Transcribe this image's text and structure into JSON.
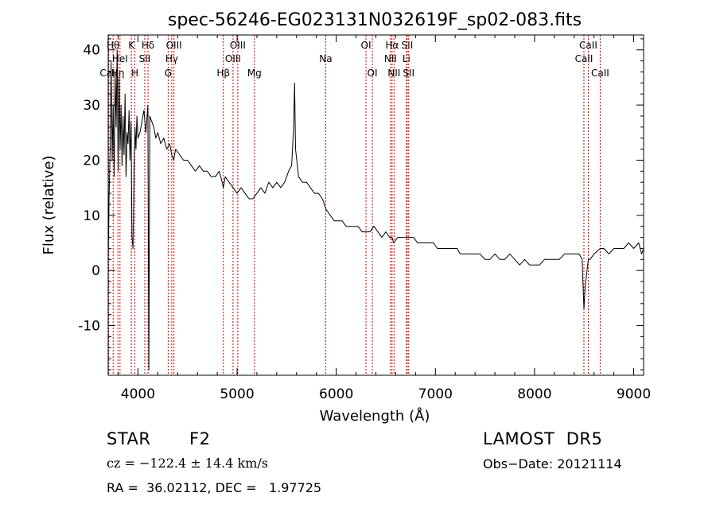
{
  "chart_data": {
    "type": "line",
    "title": "spec-56246-EG023131N032619F_sp02-083.fits",
    "xlabel": "Wavelength (Å)",
    "ylabel": "Flux (relative)",
    "xlim": [
      3700,
      9100
    ],
    "ylim": [
      -19,
      42.7
    ],
    "xticks": [
      4000,
      5000,
      6000,
      7000,
      8000,
      9000
    ],
    "yticks": [
      -10,
      0,
      10,
      20,
      30,
      40
    ],
    "grid": false,
    "legend": "none",
    "colors": {
      "spectrum": "#000000",
      "line_markers": "#cc0000",
      "axes": "#000000"
    },
    "line_markers": [
      {
        "label": "CaII",
        "x": 3706,
        "row": 2
      },
      {
        "label": "Hθ",
        "x": 3750,
        "row": 0
      },
      {
        "label": "Hη",
        "x": 3798,
        "row": 2
      },
      {
        "label": "HeI",
        "x": 3819,
        "row": 1
      },
      {
        "label": "K",
        "x": 3934,
        "row": 0
      },
      {
        "label": "H",
        "x": 3969,
        "row": 2
      },
      {
        "label": "SII",
        "x": 4069,
        "row": 1
      },
      {
        "label": "Hδ",
        "x": 4102,
        "row": 0
      },
      {
        "label": "G",
        "x": 4305,
        "row": 2
      },
      {
        "label": "Hγ",
        "x": 4341,
        "row": 1
      },
      {
        "label": "OIII",
        "x": 4363,
        "row": 0
      },
      {
        "label": "Hβ",
        "x": 4861,
        "row": 2
      },
      {
        "label": "OIII",
        "x": 4959,
        "row": 1
      },
      {
        "label": "OIII",
        "x": 5007,
        "row": 0
      },
      {
        "label": "Mg",
        "x": 5175,
        "row": 2
      },
      {
        "label": "Na",
        "x": 5894,
        "row": 1
      },
      {
        "label": "OI",
        "x": 6300,
        "row": 0
      },
      {
        "label": "OI",
        "x": 6364,
        "row": 2
      },
      {
        "label": "NII",
        "x": 6548,
        "row": 1
      },
      {
        "label": "Hα",
        "x": 6563,
        "row": 0
      },
      {
        "label": "NII",
        "x": 6583,
        "row": 2
      },
      {
        "label": "Li",
        "x": 6708,
        "row": 1
      },
      {
        "label": "SII",
        "x": 6716,
        "row": 0
      },
      {
        "label": "SII",
        "x": 6731,
        "row": 2
      },
      {
        "label": "CaII",
        "x": 8498,
        "row": 1
      },
      {
        "label": "CaII",
        "x": 8542,
        "row": 0
      },
      {
        "label": "CaII",
        "x": 8662,
        "row": 2
      }
    ],
    "series": [
      {
        "x": [
          3700,
          3710,
          3720,
          3730,
          3740,
          3750,
          3760,
          3770,
          3780,
          3790,
          3800,
          3810,
          3820,
          3830,
          3840,
          3850,
          3860,
          3870,
          3880,
          3890,
          3900,
          3910,
          3920,
          3930,
          3940,
          3950,
          3960,
          3970,
          3980,
          3990,
          4000,
          4020,
          4040,
          4060,
          4080,
          4100,
          4110,
          4120,
          4140,
          4160,
          4180,
          4200,
          4230,
          4260,
          4290,
          4320,
          4340,
          4360,
          4380,
          4420,
          4460,
          4500,
          4540,
          4580,
          4620,
          4660,
          4700,
          4740,
          4780,
          4820,
          4850,
          4861,
          4880,
          4920,
          4960,
          5000,
          5040,
          5080,
          5120,
          5160,
          5200,
          5240,
          5280,
          5320,
          5360,
          5400,
          5440,
          5480,
          5520,
          5550,
          5570,
          5580,
          5590,
          5620,
          5660,
          5700,
          5740,
          5780,
          5820,
          5860,
          5900,
          5940,
          5980,
          6020,
          6060,
          6100,
          6140,
          6180,
          6220,
          6260,
          6300,
          6340,
          6380,
          6420,
          6460,
          6500,
          6540,
          6563,
          6580,
          6620,
          6660,
          6700,
          6740,
          6780,
          6820,
          6860,
          6900,
          6940,
          6980,
          7020,
          7060,
          7100,
          7140,
          7180,
          7220,
          7250,
          7300,
          7350,
          7400,
          7450,
          7500,
          7550,
          7600,
          7650,
          7700,
          7750,
          7800,
          7850,
          7900,
          7950,
          8000,
          8050,
          8100,
          8150,
          8200,
          8250,
          8300,
          8350,
          8400,
          8450,
          8480,
          8498,
          8510,
          8542,
          8560,
          8600,
          8662,
          8700,
          8750,
          8800,
          8850,
          8900,
          8950,
          9000,
          9050,
          9080,
          9100
        ],
        "values": [
          2,
          14,
          22,
          38,
          20,
          30,
          17,
          36,
          26,
          40,
          18,
          35,
          22,
          30,
          19,
          28,
          21,
          32,
          17,
          25,
          23,
          29,
          20,
          27,
          6,
          4,
          18,
          26,
          22,
          28,
          24,
          25,
          27,
          29,
          25,
          30,
          -18,
          28,
          27,
          26,
          24,
          25,
          23,
          24,
          22,
          23,
          21,
          20,
          22,
          21,
          20,
          20,
          19,
          18,
          19,
          18,
          18,
          17,
          17,
          18,
          16,
          15,
          17,
          16,
          15,
          14,
          15,
          14,
          13,
          13,
          14,
          15,
          14,
          16,
          15,
          16,
          15,
          16,
          18,
          19,
          26,
          34,
          22,
          17,
          16,
          16,
          15,
          14,
          14,
          13,
          11,
          10,
          9,
          9,
          9,
          8,
          8,
          8,
          8,
          7,
          7,
          7,
          8,
          7,
          6,
          7,
          6,
          6,
          5,
          6,
          6,
          6,
          6,
          6,
          5,
          5,
          5,
          5,
          5,
          4,
          4,
          4,
          4,
          4,
          4,
          3,
          3,
          3,
          3,
          3,
          2,
          2,
          3,
          2,
          2,
          3,
          2,
          1,
          2,
          1,
          1,
          1,
          2,
          2,
          2,
          2,
          3,
          3,
          3,
          3,
          2,
          -7,
          -3,
          2,
          2,
          3,
          4,
          4,
          3,
          4,
          4,
          4,
          5,
          4,
          5,
          3,
          4
        ]
      }
    ]
  },
  "info": {
    "object_class": "STAR",
    "subclass": "F2",
    "survey": "LAMOST  DR5",
    "redshift_line": "cz = −122.4 ± 14.4 km/s",
    "obs_date": "Obs−Date: 20121114",
    "coords": "RA =  36.02112, DEC =   1.97725"
  }
}
